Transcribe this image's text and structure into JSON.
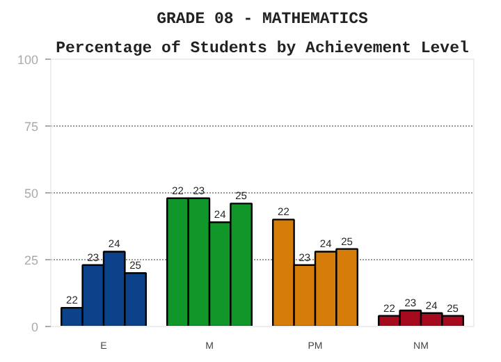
{
  "chart_data": {
    "type": "bar",
    "title": "GRADE 08 - MATHEMATICS",
    "subtitle": "Percentage of Students by Achievement Level",
    "categories": [
      "E",
      "M",
      "PM",
      "NM"
    ],
    "series": [
      {
        "name": "22",
        "colors": [
          "#0b428a",
          "#11962a",
          "#d67c08",
          "#a50a1e"
        ],
        "values": [
          7,
          48,
          40,
          4
        ]
      },
      {
        "name": "23",
        "colors": [
          "#0b428a",
          "#11962a",
          "#d67c08",
          "#a50a1e"
        ],
        "values": [
          23,
          48,
          23,
          6
        ]
      },
      {
        "name": "24",
        "colors": [
          "#0b428a",
          "#11962a",
          "#d67c08",
          "#a50a1e"
        ],
        "values": [
          28,
          39,
          28,
          5
        ]
      },
      {
        "name": "25",
        "colors": [
          "#0b428a",
          "#11962a",
          "#d67c08",
          "#a50a1e"
        ],
        "values": [
          20,
          46,
          29,
          4
        ]
      }
    ],
    "ylim": [
      0,
      100
    ],
    "yticks": [
      0,
      25,
      50,
      75,
      100
    ],
    "grid": "y"
  }
}
